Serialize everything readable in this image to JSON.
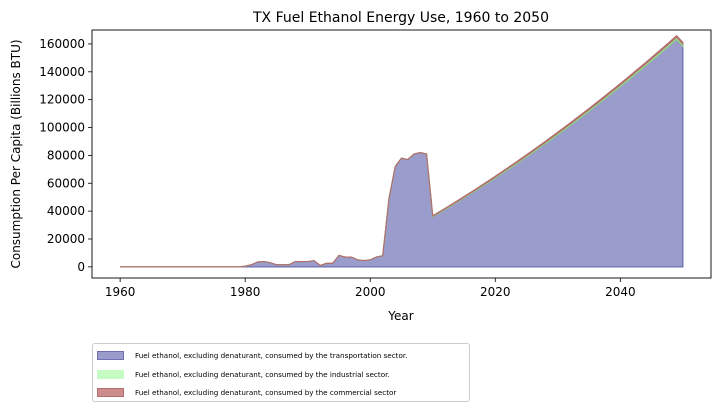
{
  "chart_data": {
    "type": "area",
    "title": "TX Fuel Ethanol Energy Use, 1960 to 2050",
    "xlabel": "Year",
    "ylabel": "Consumption Per Capita (Billions BTU)",
    "xlim": [
      1955.5,
      2054.5
    ],
    "ylim": [
      -8000,
      170000
    ],
    "xticks": [
      1960,
      1980,
      2000,
      2020,
      2040
    ],
    "yticks": [
      0,
      20000,
      40000,
      60000,
      80000,
      100000,
      120000,
      140000,
      160000
    ],
    "stacked": true,
    "legend_position": "below-left",
    "series": [
      {
        "name": "Fuel ethanol, excluding denaturant, consumed by the transportation sector.",
        "fill": "#9a9ccb",
        "edge": "#6f6fb2",
        "points": [
          [
            1960,
            0
          ],
          [
            1970,
            0
          ],
          [
            1979,
            0
          ],
          [
            1980,
            500
          ],
          [
            1981,
            1500
          ],
          [
            1982,
            3500
          ],
          [
            1983,
            3800
          ],
          [
            1984,
            3000
          ],
          [
            1985,
            1500
          ],
          [
            1986,
            1500
          ],
          [
            1987,
            1500
          ],
          [
            1988,
            3800
          ],
          [
            1989,
            3800
          ],
          [
            1990,
            3800
          ],
          [
            1991,
            4500
          ],
          [
            1992,
            1000
          ],
          [
            1993,
            2500
          ],
          [
            1994,
            2500
          ],
          [
            1995,
            8200
          ],
          [
            1996,
            7000
          ],
          [
            1997,
            7000
          ],
          [
            1998,
            5000
          ],
          [
            1999,
            4500
          ],
          [
            2000,
            5000
          ],
          [
            2001,
            7000
          ],
          [
            2002,
            8000
          ],
          [
            2003,
            49000
          ],
          [
            2004,
            72000
          ],
          [
            2005,
            78000
          ],
          [
            2006,
            77000
          ],
          [
            2007,
            81000
          ],
          [
            2008,
            82000
          ],
          [
            2009,
            81000
          ],
          [
            2010,
            36000
          ],
          [
            2011,
            38600
          ],
          [
            2012,
            41300
          ],
          [
            2013,
            44000
          ],
          [
            2014,
            46700
          ],
          [
            2015,
            49500
          ],
          [
            2016,
            52300
          ],
          [
            2017,
            55100
          ],
          [
            2018,
            58000
          ],
          [
            2019,
            60900
          ],
          [
            2020,
            63800
          ],
          [
            2021,
            66800
          ],
          [
            2022,
            69800
          ],
          [
            2023,
            72800
          ],
          [
            2024,
            75900
          ],
          [
            2025,
            79000
          ],
          [
            2026,
            82100
          ],
          [
            2027,
            85300
          ],
          [
            2028,
            88500
          ],
          [
            2029,
            91700
          ],
          [
            2030,
            95000
          ],
          [
            2031,
            98300
          ],
          [
            2032,
            101600
          ],
          [
            2033,
            105000
          ],
          [
            2034,
            108400
          ],
          [
            2035,
            111800
          ],
          [
            2036,
            115300
          ],
          [
            2037,
            118800
          ],
          [
            2038,
            122300
          ],
          [
            2039,
            125900
          ],
          [
            2040,
            129500
          ],
          [
            2041,
            133100
          ],
          [
            2042,
            136800
          ],
          [
            2043,
            140500
          ],
          [
            2044,
            144200
          ],
          [
            2045,
            148000
          ],
          [
            2046,
            151800
          ],
          [
            2047,
            155600
          ],
          [
            2048,
            159500
          ],
          [
            2049,
            163400
          ],
          [
            2050,
            158500
          ]
        ]
      },
      {
        "name": "Fuel ethanol, excluding denaturant, consumed by the industrial sector.",
        "fill": "#c6fbc4",
        "edge": "#8edc7f",
        "points": [
          [
            1960,
            0
          ],
          [
            2009,
            0
          ],
          [
            2010,
            400
          ],
          [
            2020,
            700
          ],
          [
            2030,
            1000
          ],
          [
            2040,
            1200
          ],
          [
            2050,
            1500
          ]
        ]
      },
      {
        "name": "Fuel ethanol, excluding denaturant, consumed by the commercial sector",
        "fill": "#cc8c8c",
        "edge": "#b36f6f",
        "points": [
          [
            1960,
            0
          ],
          [
            2009,
            0
          ],
          [
            2010,
            300
          ],
          [
            2020,
            500
          ],
          [
            2030,
            700
          ],
          [
            2040,
            900
          ],
          [
            2050,
            1000
          ]
        ]
      }
    ]
  }
}
